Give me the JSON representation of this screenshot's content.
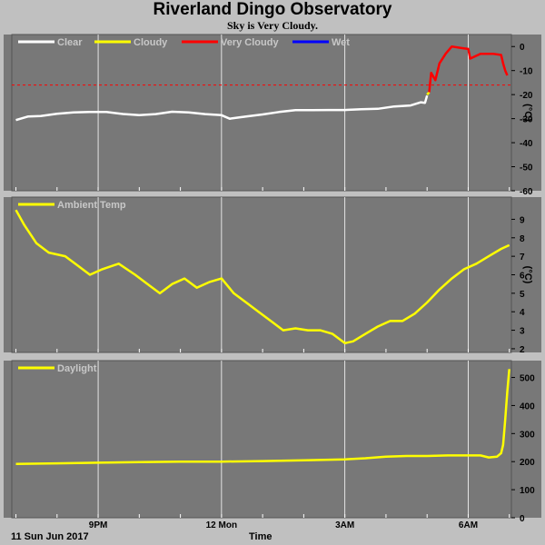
{
  "title": "Riverland Dingo Observatory",
  "subtitle": "Sky is Very Cloudy.",
  "footer": {
    "date": "11 Sun Jun 2017",
    "xlabel": "Time"
  },
  "x_axis": {
    "min": 18.9,
    "max": 31.05,
    "ticks": [
      {
        "v": 21,
        "label": "9PM"
      },
      {
        "v": 24,
        "label": "12 Mon"
      },
      {
        "v": 27,
        "label": "3AM"
      },
      {
        "v": 30,
        "label": "6AM"
      }
    ]
  },
  "colors": {
    "plot_bg": "#787878",
    "grid": "#ffffff",
    "clear": "#ffffff",
    "cloudy": "#ffff00",
    "very_cloudy": "#ff0000",
    "wet": "#0000ff",
    "threshold": "#ff0000"
  },
  "chart_data": [
    {
      "type": "line",
      "id": "sky",
      "ylabel": "(°C)",
      "ylim": [
        -60,
        5
      ],
      "yticks": [
        0,
        -10,
        -20,
        -30,
        -40,
        -50,
        -60
      ],
      "legend": [
        "Clear",
        "Cloudy",
        "Very Cloudy",
        "Wet"
      ],
      "threshold": -16,
      "series": [
        {
          "name": "Clear",
          "color": "#ffffff",
          "x": [
            19.0,
            19.3,
            19.6,
            20.0,
            20.4,
            20.8,
            21.2,
            21.6,
            22.0,
            22.4,
            22.8,
            23.2,
            23.6,
            24.0,
            24.2,
            24.6,
            25.0,
            25.4,
            25.8,
            26.2,
            26.6,
            27.0,
            27.4,
            27.8,
            28.2,
            28.6,
            28.85,
            28.95,
            29.0
          ],
          "y": [
            -30,
            -29.5,
            -29,
            -28.5,
            -28,
            -27.5,
            -27,
            -27.5,
            -28,
            -28,
            -27.5,
            -28,
            -28.5,
            -28.5,
            -29.5,
            -28.5,
            -28,
            -27.5,
            -27,
            -27,
            -26.5,
            -26,
            -25.5,
            -25.5,
            -25,
            -25,
            -23,
            -24,
            -20
          ]
        },
        {
          "name": "Cloudy",
          "color": "#ffff00",
          "x": [
            29.0,
            29.05
          ],
          "y": [
            -20,
            -19
          ]
        },
        {
          "name": "Very Cloudy",
          "color": "#ff0000",
          "x": [
            29.05,
            29.1,
            29.2,
            29.3,
            29.45,
            29.6,
            29.8,
            30.0,
            30.05,
            30.3,
            30.6,
            30.8,
            30.85,
            30.9,
            30.95
          ],
          "y": [
            -19,
            -11,
            -14,
            -7,
            -3,
            0,
            -0.5,
            -1,
            -5,
            -3,
            -3,
            -3.5,
            -7,
            -10,
            -12
          ]
        }
      ]
    },
    {
      "type": "line",
      "id": "ambient",
      "ylabel": "(°C)",
      "ylim": [
        1.8,
        10.2
      ],
      "yticks": [
        9,
        8,
        7,
        6,
        5,
        4,
        3,
        2
      ],
      "legend": [
        "Ambient Temp"
      ],
      "series": [
        {
          "name": "Ambient Temp",
          "color": "#ffff00",
          "x": [
            19.0,
            19.2,
            19.5,
            19.8,
            20.2,
            20.5,
            20.8,
            21.1,
            21.5,
            21.9,
            22.2,
            22.5,
            22.8,
            23.1,
            23.4,
            23.7,
            24.0,
            24.3,
            24.6,
            24.9,
            25.2,
            25.5,
            25.8,
            26.1,
            26.4,
            26.7,
            27.0,
            27.2,
            27.5,
            27.8,
            28.1,
            28.4,
            28.7,
            29.0,
            29.3,
            29.6,
            29.9,
            30.2,
            30.5,
            30.8,
            31.0
          ],
          "y": [
            9.5,
            8.7,
            7.7,
            7.2,
            7.0,
            6.5,
            6.0,
            6.3,
            6.6,
            6.0,
            5.5,
            5.0,
            5.5,
            5.8,
            5.3,
            5.6,
            5.8,
            5.0,
            4.5,
            4.0,
            3.5,
            3.0,
            3.1,
            3.0,
            3.0,
            2.8,
            2.3,
            2.4,
            2.8,
            3.2,
            3.5,
            3.5,
            3.9,
            4.5,
            5.2,
            5.8,
            6.3,
            6.6,
            7.0,
            7.4,
            7.6
          ]
        }
      ]
    },
    {
      "type": "line",
      "id": "daylight",
      "ylabel": "",
      "ylim": [
        0,
        560
      ],
      "yticks": [
        500,
        400,
        300,
        200,
        100,
        0
      ],
      "legend": [
        "Daylight"
      ],
      "series": [
        {
          "name": "Daylight",
          "color": "#ffff00",
          "x": [
            19.0,
            20.0,
            21.0,
            22.0,
            23.0,
            24.0,
            25.0,
            26.0,
            27.0,
            27.5,
            28.0,
            28.5,
            29.0,
            29.5,
            30.0,
            30.3,
            30.5,
            30.7,
            30.8,
            30.85,
            30.9,
            30.95,
            31.0
          ],
          "y": [
            192,
            194,
            196,
            198,
            200,
            200,
            202,
            205,
            208,
            212,
            218,
            220,
            220,
            222,
            222,
            222,
            215,
            218,
            230,
            260,
            350,
            450,
            530
          ]
        }
      ]
    }
  ]
}
